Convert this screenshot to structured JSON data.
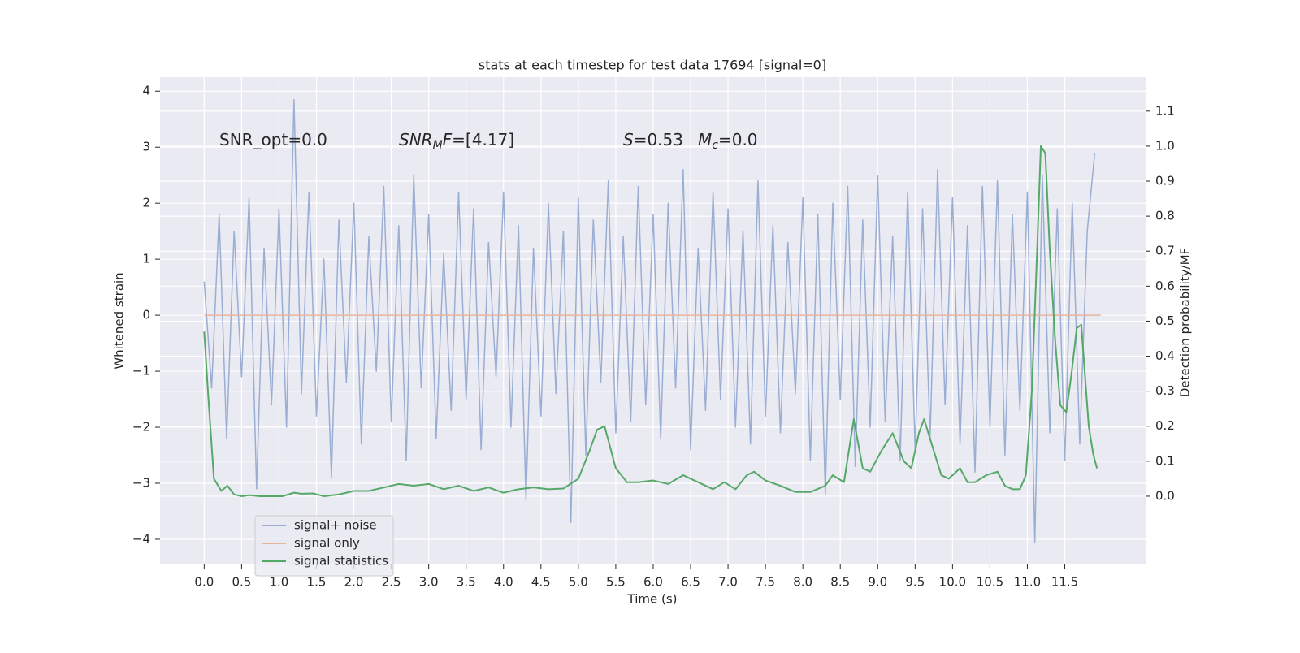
{
  "chart_data": {
    "type": "line",
    "title": "stats at each timestep for test data 17694 [signal=0]",
    "xlabel": "Time (s)",
    "ylabel": "Whitened strain",
    "y2label": "Detection probability/MF",
    "xlim": [
      -0.59,
      12.58
    ],
    "ylim": [
      -4.45,
      4.25
    ],
    "y2lim": [
      -0.195,
      1.197
    ],
    "xticks": [
      {
        "value": 0,
        "label": "0.0"
      },
      {
        "value": 0.5,
        "label": "0.5"
      },
      {
        "value": 1,
        "label": "1.0"
      },
      {
        "value": 1.5,
        "label": "1.5"
      },
      {
        "value": 2,
        "label": "2.0"
      },
      {
        "value": 2.5,
        "label": "2.5"
      },
      {
        "value": 3,
        "label": "3.0"
      },
      {
        "value": 3.5,
        "label": "3.5"
      },
      {
        "value": 4,
        "label": "4.0"
      },
      {
        "value": 4.5,
        "label": "4.5"
      },
      {
        "value": 5,
        "label": "5.0"
      },
      {
        "value": 5.5,
        "label": "5.5"
      },
      {
        "value": 6,
        "label": "6.0"
      },
      {
        "value": 6.5,
        "label": "6.5"
      },
      {
        "value": 7,
        "label": "7.0"
      },
      {
        "value": 7.5,
        "label": "7.5"
      },
      {
        "value": 8,
        "label": "8.0"
      },
      {
        "value": 8.5,
        "label": "8.5"
      },
      {
        "value": 9,
        "label": "9.0"
      },
      {
        "value": 9.5,
        "label": "9.5"
      },
      {
        "value": 10,
        "label": "10.0"
      },
      {
        "value": 10.5,
        "label": "10.5"
      },
      {
        "value": 11,
        "label": "11.0"
      },
      {
        "value": 11.5,
        "label": "11.5"
      }
    ],
    "yticks": [
      {
        "value": -4,
        "label": "−4"
      },
      {
        "value": -3,
        "label": "−3"
      },
      {
        "value": -2,
        "label": "−2"
      },
      {
        "value": -1,
        "label": "−1"
      },
      0,
      1,
      2,
      3,
      4
    ],
    "y2ticks": [
      {
        "value": 0,
        "label": "0.0"
      },
      {
        "value": 0.1,
        "label": "0.1"
      },
      {
        "value": 0.2,
        "label": "0.2"
      },
      {
        "value": 0.3,
        "label": "0.3"
      },
      {
        "value": 0.4,
        "label": "0.4"
      },
      {
        "value": 0.5,
        "label": "0.5"
      },
      {
        "value": 0.6,
        "label": "0.6"
      },
      {
        "value": 0.7,
        "label": "0.7"
      },
      {
        "value": 0.8,
        "label": "0.8"
      },
      {
        "value": 0.9,
        "label": "0.9"
      },
      {
        "value": 1,
        "label": "1.0"
      },
      {
        "value": 1.1,
        "label": "1.1"
      }
    ],
    "grid": true,
    "legend": "lower left",
    "annotations": [
      {
        "parts": [
          {
            "text": "SNR_opt=0.0"
          }
        ]
      },
      {
        "parts": [
          {
            "text": "SNR",
            "italic": true
          },
          {
            "text": "M",
            "italic": true,
            "sub": true
          },
          {
            "text": "F",
            "italic": true
          },
          {
            "text": "=[4.17]"
          }
        ]
      },
      {
        "parts": [
          {
            "text": "S",
            "italic": true
          },
          {
            "text": "=0.53"
          }
        ]
      },
      {
        "parts": [
          {
            "text": "M",
            "italic": true
          },
          {
            "text": "c",
            "italic": true,
            "sub": true
          },
          {
            "text": "=0.0"
          }
        ]
      }
    ],
    "series": [
      {
        "name": "signal+ noise",
        "color": "#9aaed3",
        "x": [
          0,
          0.1,
          0.2,
          0.3,
          0.4,
          0.5,
          0.6,
          0.7,
          0.8,
          0.9,
          1,
          1.1,
          1.2,
          1.3,
          1.4,
          1.5,
          1.6,
          1.7,
          1.8,
          1.9,
          2,
          2.1,
          2.2,
          2.3,
          2.4,
          2.5,
          2.6,
          2.7,
          2.8,
          2.9,
          3,
          3.1,
          3.2,
          3.3,
          3.4,
          3.5,
          3.6,
          3.7,
          3.8,
          3.9,
          4,
          4.1,
          4.2,
          4.3,
          4.4,
          4.5,
          4.6,
          4.7,
          4.8,
          4.9,
          5,
          5.1,
          5.2,
          5.3,
          5.4,
          5.5,
          5.6,
          5.7,
          5.8,
          5.9,
          6,
          6.1,
          6.2,
          6.3,
          6.4,
          6.5,
          6.6,
          6.7,
          6.8,
          6.9,
          7,
          7.1,
          7.2,
          7.3,
          7.4,
          7.5,
          7.6,
          7.7,
          7.8,
          7.9,
          8,
          8.1,
          8.2,
          8.3,
          8.4,
          8.5,
          8.6,
          8.7,
          8.8,
          8.9,
          9,
          9.1,
          9.2,
          9.3,
          9.4,
          9.5,
          9.6,
          9.7,
          9.8,
          9.9,
          10,
          10.1,
          10.2,
          10.3,
          10.4,
          10.5,
          10.6,
          10.7,
          10.8,
          10.9,
          11,
          11.1,
          11.2,
          11.3,
          11.4,
          11.5,
          11.6,
          11.7,
          11.8,
          11.9
        ],
        "values": [
          0.6,
          -1.3,
          1.8,
          -2.2,
          1.5,
          -1.1,
          2.1,
          -3.1,
          1.2,
          -1.6,
          1.9,
          -2.0,
          3.85,
          -1.4,
          2.2,
          -1.8,
          1.0,
          -2.9,
          1.7,
          -1.2,
          2.0,
          -2.3,
          1.4,
          -1.0,
          2.3,
          -1.9,
          1.6,
          -2.6,
          2.5,
          -1.3,
          1.8,
          -2.2,
          1.1,
          -1.7,
          2.2,
          -1.5,
          1.9,
          -2.4,
          1.3,
          -1.1,
          2.2,
          -2.0,
          1.6,
          -3.3,
          1.2,
          -1.8,
          2.0,
          -1.4,
          1.5,
          -3.7,
          2.1,
          -2.5,
          1.7,
          -1.2,
          2.4,
          -2.1,
          1.4,
          -1.9,
          2.3,
          -1.6,
          1.8,
          -2.2,
          2.0,
          -1.3,
          2.6,
          -2.4,
          1.2,
          -1.7,
          2.2,
          -1.5,
          1.9,
          -2.0,
          1.5,
          -2.3,
          2.4,
          -1.8,
          1.6,
          -2.1,
          1.3,
          -1.4,
          2.1,
          -2.6,
          1.8,
          -3.2,
          2.0,
          -1.5,
          2.3,
          -2.7,
          1.7,
          -2.0,
          2.5,
          -1.9,
          1.4,
          -2.6,
          2.2,
          -2.4,
          1.9,
          -2.2,
          2.6,
          -1.6,
          2.1,
          -2.3,
          1.6,
          -2.8,
          2.3,
          -2.0,
          2.4,
          -2.5,
          1.8,
          -1.7,
          2.2,
          -4.05,
          2.5,
          -2.1,
          1.9,
          -2.6,
          2.0,
          -2.3,
          1.5,
          2.9
        ]
      },
      {
        "name": "signal only",
        "color": "#e9b59a",
        "x": [
          0,
          11.98
        ],
        "values": [
          0,
          0
        ]
      },
      {
        "name": "signal statistics",
        "color": "#55a868",
        "axis": "y2",
        "x": [
          0.0,
          0.05,
          0.13,
          0.23,
          0.31,
          0.4,
          0.5,
          0.6,
          0.75,
          0.9,
          1.05,
          1.2,
          1.3,
          1.45,
          1.6,
          1.8,
          2.0,
          2.2,
          2.4,
          2.6,
          2.8,
          3.0,
          3.2,
          3.4,
          3.6,
          3.8,
          4.0,
          4.2,
          4.4,
          4.6,
          4.8,
          5.0,
          5.15,
          5.25,
          5.35,
          5.5,
          5.65,
          5.8,
          6.0,
          6.2,
          6.4,
          6.6,
          6.8,
          6.95,
          7.1,
          7.25,
          7.35,
          7.5,
          7.7,
          7.9,
          8.1,
          8.3,
          8.4,
          8.55,
          8.68,
          8.8,
          8.9,
          9.05,
          9.2,
          9.35,
          9.45,
          9.55,
          9.62,
          9.72,
          9.85,
          9.95,
          10.1,
          10.2,
          10.3,
          10.45,
          10.6,
          10.7,
          10.8,
          10.9,
          10.98,
          11.06,
          11.13,
          11.18,
          11.24,
          11.3,
          11.37,
          11.44,
          11.52,
          11.59,
          11.66,
          11.72,
          11.82,
          11.88,
          11.93
        ],
        "values": [
          0.47,
          0.3,
          0.05,
          0.015,
          0.03,
          0.005,
          0.0,
          0.003,
          0.0,
          0.0,
          0.0,
          0.01,
          0.007,
          0.008,
          0.0,
          0.005,
          0.015,
          0.015,
          0.025,
          0.035,
          0.03,
          0.035,
          0.02,
          0.03,
          0.015,
          0.025,
          0.01,
          0.02,
          0.025,
          0.02,
          0.022,
          0.05,
          0.13,
          0.19,
          0.2,
          0.08,
          0.04,
          0.04,
          0.045,
          0.035,
          0.06,
          0.04,
          0.02,
          0.04,
          0.02,
          0.06,
          0.07,
          0.045,
          0.03,
          0.012,
          0.012,
          0.03,
          0.06,
          0.04,
          0.22,
          0.08,
          0.07,
          0.13,
          0.18,
          0.1,
          0.08,
          0.18,
          0.22,
          0.15,
          0.06,
          0.05,
          0.08,
          0.04,
          0.04,
          0.06,
          0.07,
          0.03,
          0.02,
          0.02,
          0.06,
          0.3,
          0.7,
          1.0,
          0.98,
          0.7,
          0.45,
          0.26,
          0.24,
          0.35,
          0.48,
          0.49,
          0.2,
          0.12,
          0.08
        ]
      }
    ]
  }
}
